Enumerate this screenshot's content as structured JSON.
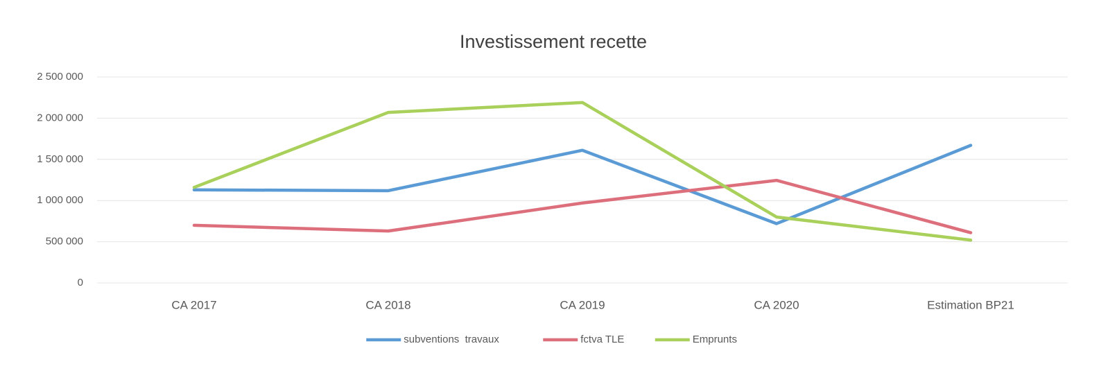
{
  "chart_data": {
    "type": "line",
    "title": "Investissement recette",
    "categories": [
      "CA 2017",
      "CA 2018",
      "CA 2019",
      "CA 2020",
      "Estimation BP21"
    ],
    "series": [
      {
        "name": "subventions  travaux",
        "color": "#5b9bd5",
        "values": [
          1130000,
          1120000,
          1610000,
          720000,
          1670000
        ]
      },
      {
        "name": "fctva TLE",
        "color": "#dc6f7b",
        "values": [
          700000,
          630000,
          970000,
          1245000,
          610000
        ]
      },
      {
        "name": "Emprunts",
        "color": "#a9d05a",
        "values": [
          1160000,
          2070000,
          2190000,
          800000,
          520000
        ]
      }
    ],
    "ylim": [
      0,
      2500000
    ],
    "yticks": [
      0,
      {
        "value": 500000,
        "label": "500 000"
      },
      {
        "value": 1000000,
        "label": "1 000 000"
      },
      {
        "value": 1500000,
        "label": "1 500 000"
      },
      {
        "value": 2000000,
        "label": "2 000 000"
      },
      {
        "value": 2500000,
        "label": "2 500 000"
      }
    ],
    "grid": true,
    "legend": "bottom"
  }
}
